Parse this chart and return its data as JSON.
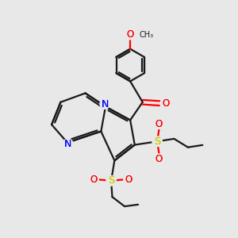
{
  "bg_color": "#e8e8e8",
  "bond_color": "#1a1a1a",
  "nitrogen_color": "#0000ff",
  "oxygen_color": "#ff0000",
  "sulfur_color": "#cccc00",
  "line_width": 1.6,
  "figsize": [
    3.0,
    3.0
  ],
  "dpi": 100,
  "xlim": [
    0.0,
    10.0
  ],
  "ylim": [
    0.0,
    10.5
  ]
}
